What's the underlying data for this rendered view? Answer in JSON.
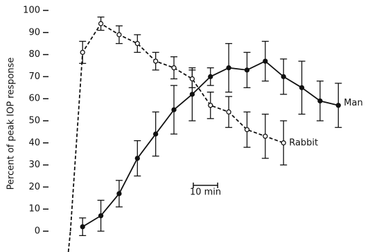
{
  "chart_data": {
    "type": "line",
    "y_label": "Percent of peak IOP response",
    "xlim": [
      -9,
      123
    ],
    "ylim": [
      0,
      100
    ],
    "yticks": [
      0,
      10,
      20,
      30,
      40,
      50,
      60,
      70,
      80,
      90,
      100
    ],
    "scale_bar": {
      "label": "10 min",
      "length": 10
    },
    "series": [
      {
        "name": "Man",
        "color": "#111111",
        "dash": false,
        "marker": "filled",
        "x": [
          5,
          12.5,
          20,
          27.5,
          35,
          42.5,
          50,
          57.5,
          65,
          72.5,
          80,
          87.5,
          95,
          102.5,
          110
        ],
        "values": [
          2,
          7,
          17,
          33,
          44,
          55,
          62,
          70,
          74,
          73,
          77,
          70,
          65,
          59,
          57
        ],
        "errors": [
          4,
          7,
          6,
          8,
          10,
          11,
          12,
          4,
          11,
          8,
          9,
          8,
          12,
          9,
          10
        ]
      },
      {
        "name": "Rabbit",
        "color": "#111111",
        "dash": true,
        "marker": "open",
        "x": [
          0,
          5,
          12.5,
          20,
          27.5,
          35,
          42.5,
          50,
          57.5,
          65,
          72.5,
          80,
          87.5
        ],
        "values": [
          0,
          81,
          94,
          89,
          85,
          77,
          74,
          69,
          57,
          54,
          46,
          43,
          40
        ],
        "errors": [
          null,
          5,
          3,
          4,
          4,
          4,
          5,
          4,
          6,
          7,
          8,
          10,
          10
        ]
      }
    ]
  }
}
